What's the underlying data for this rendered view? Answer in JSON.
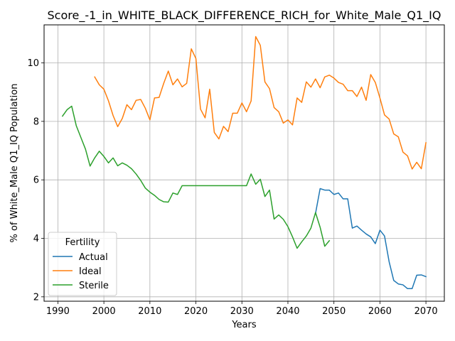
{
  "chart_data": {
    "type": "line",
    "title": "Score_-1_in_WHITE_BLACK_DIFFERENCE_RICH_for_White_Male_Q1_IQ",
    "xlabel": "Years",
    "ylabel": "% of White_Male Q1_IQ Population",
    "xlim": [
      1987,
      2074
    ],
    "ylim": [
      1.85,
      11.3
    ],
    "xticks": [
      1990,
      2000,
      2010,
      2020,
      2030,
      2040,
      2050,
      2060,
      2070
    ],
    "yticks": [
      2,
      4,
      6,
      8,
      10
    ],
    "grid": true,
    "legend": {
      "title": "Fertility",
      "placement": "lower-left"
    },
    "series": [
      {
        "name": "Actual",
        "color": "#1f77b4",
        "points": [
          [
            2046,
            4.85
          ],
          [
            2047,
            5.7
          ],
          [
            2048,
            5.65
          ],
          [
            2049,
            5.65
          ],
          [
            2050,
            5.5
          ],
          [
            2051,
            5.55
          ],
          [
            2052,
            5.35
          ],
          [
            2053,
            5.35
          ],
          [
            2054,
            4.35
          ],
          [
            2055,
            4.42
          ],
          [
            2056,
            4.28
          ],
          [
            2057,
            4.15
          ],
          [
            2058,
            4.05
          ],
          [
            2059,
            3.82
          ],
          [
            2060,
            4.28
          ],
          [
            2061,
            4.08
          ],
          [
            2062,
            3.2
          ],
          [
            2063,
            2.56
          ],
          [
            2064,
            2.44
          ],
          [
            2065,
            2.41
          ],
          [
            2066,
            2.28
          ],
          [
            2067,
            2.28
          ],
          [
            2068,
            2.74
          ],
          [
            2069,
            2.75
          ],
          [
            2070,
            2.69
          ]
        ]
      },
      {
        "name": "Ideal",
        "color": "#ff7f0e",
        "points": [
          [
            1998,
            9.52
          ],
          [
            1999,
            9.25
          ],
          [
            2000,
            9.1
          ],
          [
            2001,
            8.7
          ],
          [
            2002,
            8.2
          ],
          [
            2003,
            7.82
          ],
          [
            2004,
            8.1
          ],
          [
            2005,
            8.57
          ],
          [
            2006,
            8.4
          ],
          [
            2007,
            8.72
          ],
          [
            2008,
            8.75
          ],
          [
            2009,
            8.45
          ],
          [
            2010,
            8.05
          ],
          [
            2011,
            8.8
          ],
          [
            2012,
            8.82
          ],
          [
            2013,
            9.3
          ],
          [
            2014,
            9.72
          ],
          [
            2015,
            9.25
          ],
          [
            2016,
            9.45
          ],
          [
            2017,
            9.18
          ],
          [
            2018,
            9.3
          ],
          [
            2019,
            10.48
          ],
          [
            2020,
            10.15
          ],
          [
            2021,
            8.42
          ],
          [
            2022,
            8.12
          ],
          [
            2023,
            9.1
          ],
          [
            2024,
            7.62
          ],
          [
            2025,
            7.4
          ],
          [
            2026,
            7.83
          ],
          [
            2027,
            7.65
          ],
          [
            2028,
            8.28
          ],
          [
            2029,
            8.28
          ],
          [
            2030,
            8.63
          ],
          [
            2031,
            8.33
          ],
          [
            2032,
            8.7
          ],
          [
            2033,
            10.9
          ],
          [
            2034,
            10.6
          ],
          [
            2035,
            9.35
          ],
          [
            2036,
            9.12
          ],
          [
            2037,
            8.47
          ],
          [
            2038,
            8.33
          ],
          [
            2039,
            7.94
          ],
          [
            2040,
            8.05
          ],
          [
            2041,
            7.88
          ],
          [
            2042,
            8.8
          ],
          [
            2043,
            8.65
          ],
          [
            2044,
            9.35
          ],
          [
            2045,
            9.17
          ],
          [
            2046,
            9.45
          ],
          [
            2047,
            9.15
          ],
          [
            2048,
            9.52
          ],
          [
            2049,
            9.58
          ],
          [
            2050,
            9.48
          ],
          [
            2051,
            9.33
          ],
          [
            2052,
            9.27
          ],
          [
            2053,
            9.05
          ],
          [
            2054,
            9.05
          ],
          [
            2055,
            8.85
          ],
          [
            2056,
            9.17
          ],
          [
            2057,
            8.72
          ],
          [
            2058,
            9.6
          ],
          [
            2059,
            9.33
          ],
          [
            2060,
            8.8
          ],
          [
            2061,
            8.22
          ],
          [
            2062,
            8.08
          ],
          [
            2063,
            7.57
          ],
          [
            2064,
            7.47
          ],
          [
            2065,
            6.95
          ],
          [
            2066,
            6.82
          ],
          [
            2067,
            6.37
          ],
          [
            2068,
            6.6
          ],
          [
            2069,
            6.38
          ],
          [
            2070,
            7.27
          ]
        ]
      },
      {
        "name": "Sterile",
        "color": "#2ca02c",
        "points": [
          [
            1991,
            8.18
          ],
          [
            1992,
            8.4
          ],
          [
            1993,
            8.52
          ],
          [
            1994,
            7.85
          ],
          [
            1995,
            7.45
          ],
          [
            1996,
            7.05
          ],
          [
            1997,
            6.47
          ],
          [
            1998,
            6.75
          ],
          [
            1999,
            6.98
          ],
          [
            2000,
            6.8
          ],
          [
            2001,
            6.58
          ],
          [
            2002,
            6.75
          ],
          [
            2003,
            6.48
          ],
          [
            2004,
            6.58
          ],
          [
            2005,
            6.5
          ],
          [
            2006,
            6.38
          ],
          [
            2007,
            6.2
          ],
          [
            2008,
            5.98
          ],
          [
            2009,
            5.72
          ],
          [
            2010,
            5.58
          ],
          [
            2011,
            5.47
          ],
          [
            2012,
            5.33
          ],
          [
            2013,
            5.25
          ],
          [
            2014,
            5.24
          ],
          [
            2015,
            5.55
          ],
          [
            2016,
            5.5
          ],
          [
            2017,
            5.8
          ],
          [
            2018,
            5.8
          ],
          [
            2019,
            5.8
          ],
          [
            2020,
            5.8
          ],
          [
            2021,
            5.8
          ],
          [
            2022,
            5.8
          ],
          [
            2023,
            5.8
          ],
          [
            2024,
            5.8
          ],
          [
            2025,
            5.8
          ],
          [
            2026,
            5.8
          ],
          [
            2027,
            5.8
          ],
          [
            2028,
            5.8
          ],
          [
            2029,
            5.8
          ],
          [
            2030,
            5.8
          ],
          [
            2031,
            5.8
          ],
          [
            2032,
            6.2
          ],
          [
            2033,
            5.85
          ],
          [
            2034,
            6.02
          ],
          [
            2035,
            5.43
          ],
          [
            2036,
            5.65
          ],
          [
            2037,
            4.66
          ],
          [
            2038,
            4.8
          ],
          [
            2039,
            4.65
          ],
          [
            2040,
            4.4
          ],
          [
            2041,
            4.05
          ],
          [
            2042,
            3.66
          ],
          [
            2043,
            3.88
          ],
          [
            2044,
            4.08
          ],
          [
            2045,
            4.35
          ],
          [
            2046,
            4.88
          ],
          [
            2047,
            4.38
          ],
          [
            2048,
            3.73
          ],
          [
            2049,
            3.92
          ]
        ]
      }
    ]
  }
}
